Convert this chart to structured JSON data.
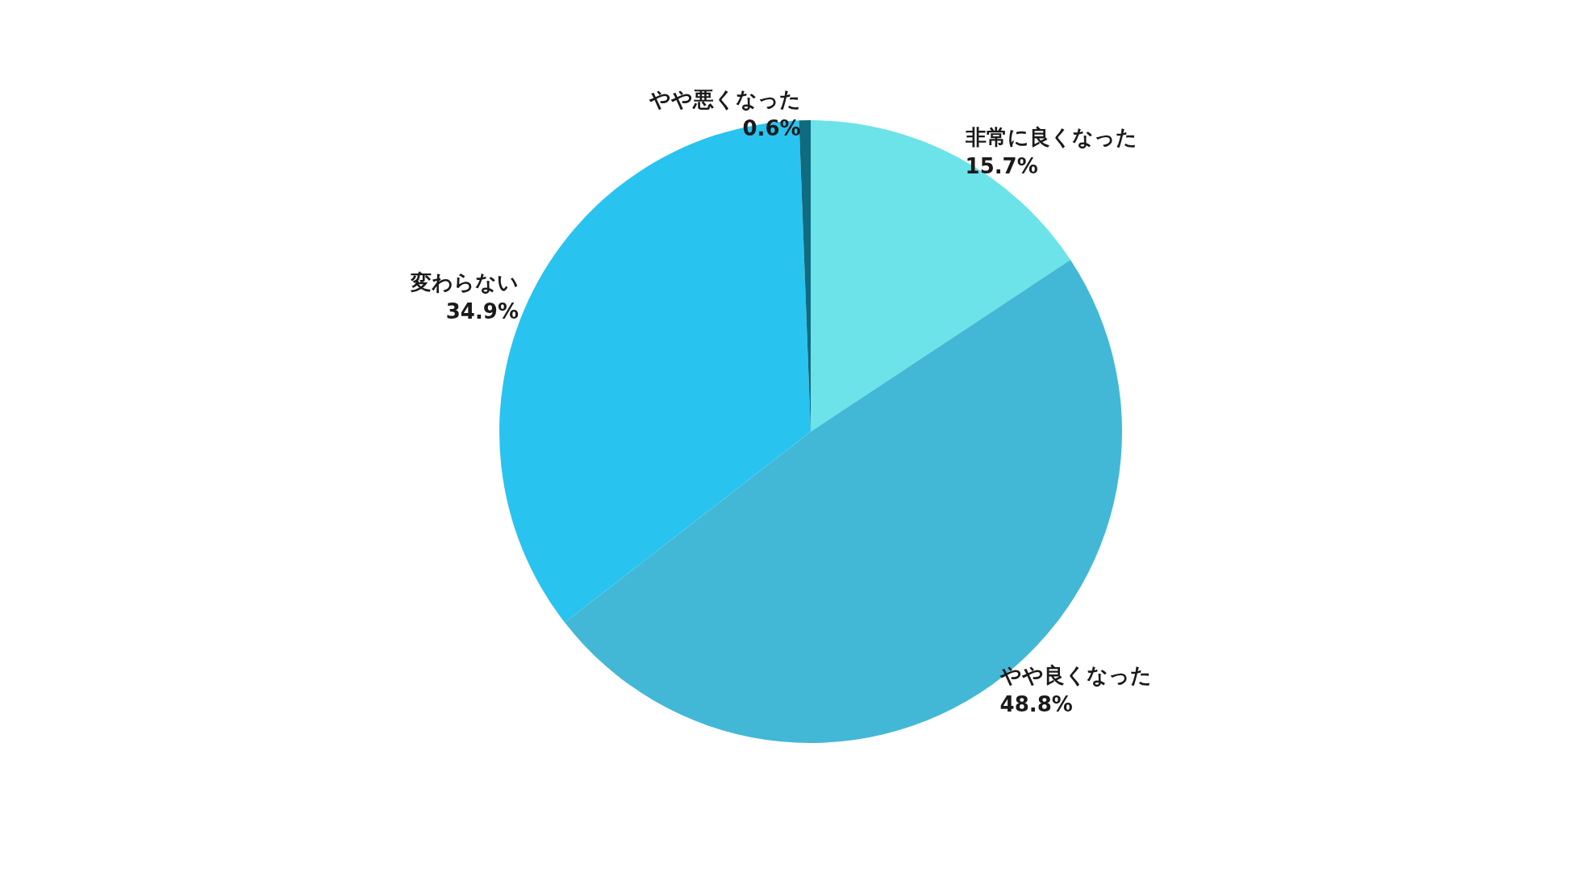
{
  "chart_data": {
    "type": "pie",
    "categories": [
      "非常に良くなった",
      "やや良くなった",
      "変わらない",
      "やや悪くなった"
    ],
    "values": [
      15.7,
      48.8,
      34.9,
      0.6
    ],
    "value_labels": [
      "15.7%",
      "48.8%",
      "34.9%",
      "0.6%"
    ],
    "colors": [
      "#6be3e8",
      "#43b8d6",
      "#29c3f0",
      "#0f6b80"
    ],
    "legend": false
  }
}
